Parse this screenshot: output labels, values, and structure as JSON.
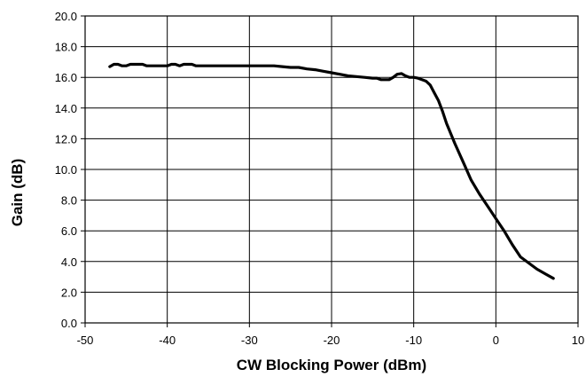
{
  "chart_data": {
    "type": "line",
    "xlabel": "CW Blocking Power (dBm)",
    "ylabel": "Gain (dB)",
    "xlim": [
      -50,
      10
    ],
    "ylim": [
      0,
      20
    ],
    "xticks": [
      -50,
      -40,
      -30,
      -20,
      -10,
      0,
      10
    ],
    "yticks": [
      0,
      2,
      4,
      6,
      8,
      10,
      12,
      14,
      16,
      18,
      20
    ],
    "xtick_labels": [
      "-50",
      "-40",
      "-30",
      "-20",
      "-10",
      "0",
      "10"
    ],
    "ytick_labels": [
      "0.0",
      "2.0",
      "4.0",
      "6.0",
      "8.0",
      "10.0",
      "12.0",
      "14.0",
      "16.0",
      "18.0",
      "20.0"
    ],
    "grid": true,
    "legend": "none",
    "line_color": "#000000",
    "series": [
      {
        "x": [
          -47,
          -46.5,
          -46,
          -45.5,
          -45,
          -44.5,
          -44,
          -43.5,
          -43,
          -42.5,
          -42,
          -41,
          -40,
          -39.5,
          -39,
          -38.5,
          -38,
          -37.5,
          -37,
          -36.5,
          -36,
          -35,
          -33,
          -31,
          -29,
          -27,
          -26,
          -25,
          -24,
          -23,
          -22,
          -21,
          -20,
          -19,
          -18,
          -17,
          -16,
          -15,
          -14.5,
          -14,
          -13.5,
          -13,
          -12.5,
          -12,
          -11.5,
          -11,
          -10.5,
          -10,
          -9.5,
          -9,
          -8.5,
          -8,
          -7.5,
          -7,
          -6.5,
          -6,
          -5,
          -4,
          -3,
          -2,
          -1,
          0,
          1,
          2,
          3,
          4,
          5,
          6,
          7
        ],
        "y": [
          16.7,
          16.85,
          16.85,
          16.75,
          16.75,
          16.85,
          16.85,
          16.85,
          16.85,
          16.75,
          16.75,
          16.75,
          16.75,
          16.85,
          16.85,
          16.75,
          16.85,
          16.85,
          16.85,
          16.75,
          16.75,
          16.75,
          16.75,
          16.75,
          16.75,
          16.75,
          16.7,
          16.65,
          16.65,
          16.55,
          16.5,
          16.4,
          16.3,
          16.2,
          16.1,
          16.05,
          16.0,
          15.95,
          15.95,
          15.85,
          15.85,
          15.85,
          16.0,
          16.2,
          16.25,
          16.1,
          16.0,
          16.0,
          15.95,
          15.85,
          15.75,
          15.5,
          15.0,
          14.5,
          13.8,
          13.0,
          11.7,
          10.5,
          9.3,
          8.4,
          7.6,
          6.8,
          6.0,
          5.1,
          4.3,
          3.9,
          3.5,
          3.2,
          2.9
        ]
      }
    ]
  }
}
